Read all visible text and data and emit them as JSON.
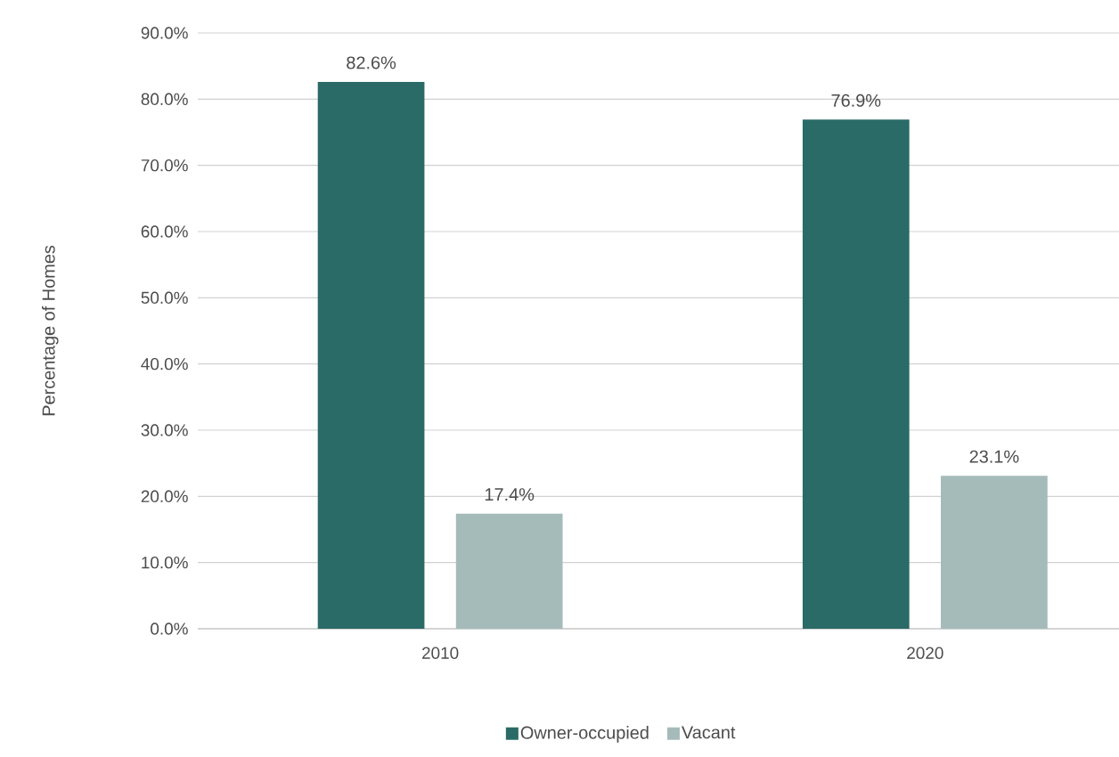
{
  "chart_data": {
    "type": "bar",
    "ylabel": "Percentage of Homes",
    "categories": [
      "2010",
      "2020"
    ],
    "series": [
      {
        "name": "Owner-occupied",
        "color": "#2a6a67",
        "values": [
          82.6,
          76.9
        ],
        "value_labels": [
          "82.6%",
          "76.9%"
        ]
      },
      {
        "name": "Vacant",
        "color": "#a5bbba",
        "values": [
          17.4,
          23.1
        ],
        "value_labels": [
          "17.4%",
          "23.1%"
        ]
      }
    ],
    "ylim": [
      0,
      90
    ],
    "yticks": [
      {
        "value": 0,
        "label": "0.0%"
      },
      {
        "value": 10,
        "label": "10.0%"
      },
      {
        "value": 20,
        "label": "20.0%"
      },
      {
        "value": 30,
        "label": "30.0%"
      },
      {
        "value": 40,
        "label": "40.0%"
      },
      {
        "value": 50,
        "label": "50.0%"
      },
      {
        "value": 60,
        "label": "60.0%"
      },
      {
        "value": 70,
        "label": "70.0%"
      },
      {
        "value": 80,
        "label": "80.0%"
      },
      {
        "value": 90,
        "label": "90.0%"
      }
    ],
    "grid": "y",
    "legend": "bottom"
  }
}
